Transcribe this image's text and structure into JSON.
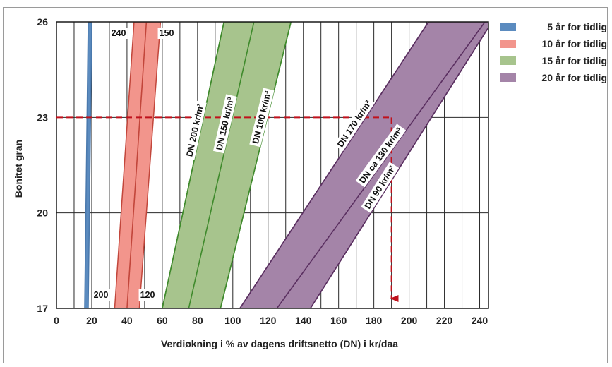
{
  "chart_data": {
    "type": "area",
    "title": "",
    "xlabel": "Verdiøkning i % av dagens driftsnetto (DN) i kr/daa",
    "ylabel": "Bonitet gran",
    "xlim": [
      0,
      245
    ],
    "ylim": [
      17,
      26
    ],
    "x_ticks": [
      "0",
      "20",
      "40",
      "60",
      "80",
      "100",
      "120",
      "140",
      "160",
      "180",
      "200",
      "220",
      "240"
    ],
    "y_ticks": [
      "17",
      "20",
      "23",
      "26"
    ],
    "grid": true,
    "legend_position": "right",
    "series": [
      {
        "name": "5 år for tidlig",
        "color": "#5b8bbf",
        "band": {
          "left": [
            [
              16,
              17
            ],
            [
              18,
              26
            ]
          ],
          "right": [
            [
              18,
              17
            ],
            [
              20,
              26
            ]
          ]
        },
        "lines": []
      },
      {
        "name": "10 år for tidlig",
        "color": "#f2958c",
        "band": {
          "left": [
            [
              33,
              17
            ],
            [
              44,
              26
            ]
          ],
          "right": [
            [
              47,
              17
            ],
            [
              59,
              26
            ]
          ]
        },
        "lines": [
          {
            "label": "",
            "points": [
              [
                40,
                17
              ],
              [
                51,
                26
              ]
            ]
          }
        ]
      },
      {
        "name": "15 år for tidlig",
        "color": "#a7c48d",
        "band": {
          "left": [
            [
              60,
              17
            ],
            [
              95,
              26
            ]
          ],
          "right": [
            [
              93,
              17
            ],
            [
              133,
              26
            ]
          ]
        },
        "lines": [
          {
            "label": "DN 200 kr/m³",
            "points": [
              [
                60,
                17
              ],
              [
                95,
                26
              ]
            ]
          },
          {
            "label": "DN 150 kr/m³",
            "points": [
              [
                75,
                17
              ],
              [
                112,
                26
              ]
            ]
          },
          {
            "label": "DN 100 kr/m³",
            "points": [
              [
                93,
                17
              ],
              [
                133,
                26
              ]
            ]
          }
        ]
      },
      {
        "name": "20 år for tidlig",
        "color": "#a484a8",
        "band": {
          "left": [
            [
              104,
              17
            ],
            [
              211,
              26
            ]
          ],
          "right": [
            [
              144,
              17
            ],
            [
              247,
              26
            ]
          ]
        },
        "lines": [
          {
            "label": "DN 170 kr/m³",
            "points": [
              [
                104,
                17
              ],
              [
                211,
                26
              ]
            ]
          },
          {
            "label": "DN ca 130 kr/m³",
            "points": [
              [
                125,
                17
              ],
              [
                243,
                26
              ]
            ]
          },
          {
            "label": "DN 90 kr/m³",
            "points": [
              [
                144,
                17
              ],
              [
                247,
                26
              ]
            ]
          }
        ]
      }
    ],
    "annotations": {
      "top_left": "240",
      "top_right": "150",
      "bottom_left": "200",
      "bottom_right": "120"
    },
    "example_path": {
      "color": "#c0121c",
      "start_y": 23,
      "target_x": 190,
      "end_y": 17
    }
  }
}
